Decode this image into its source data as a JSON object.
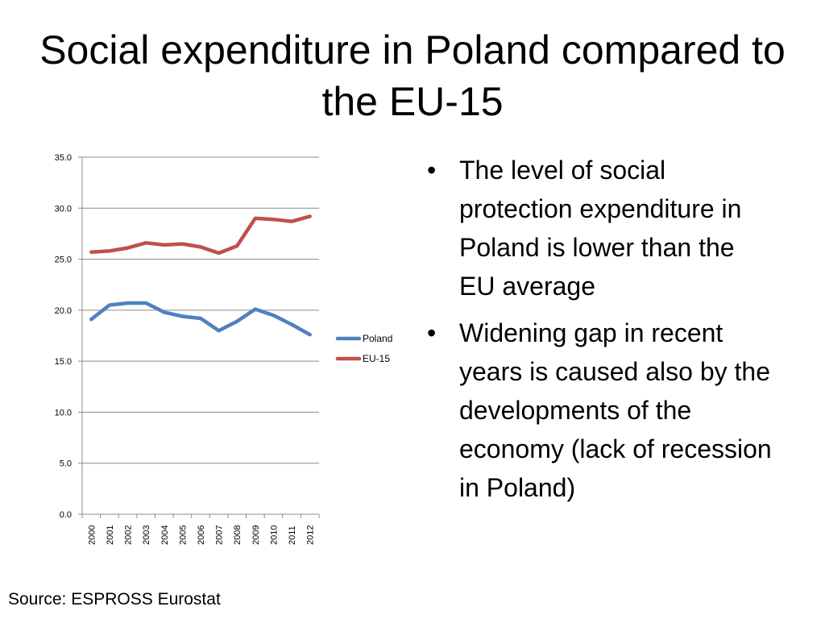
{
  "slide": {
    "title": "Social expenditure in Poland compared to the EU-15",
    "bullets": [
      "The level of social protection expenditure in Poland is lower than the EU average",
      "Widening gap in recent years is caused also by the developments of the economy (lack of recession in Poland)"
    ],
    "bullet_symbol": "•",
    "source": "Source: ESPROSS Eurostat"
  },
  "chart_data": {
    "type": "line",
    "title": "",
    "xlabel": "",
    "ylabel": "",
    "x": [
      "2000",
      "2001",
      "2002",
      "2003",
      "2004",
      "2005",
      "2006",
      "2007",
      "2008",
      "2009",
      "2010",
      "2011",
      "2012"
    ],
    "ylim": [
      0,
      35
    ],
    "yticks": [
      "0.0",
      "5.0",
      "10.0",
      "15.0",
      "20.0",
      "25.0",
      "30.0",
      "35.0"
    ],
    "grid": true,
    "legend": "right",
    "series": [
      {
        "name": "Poland",
        "color": "#4F81BD",
        "values": [
          19.1,
          20.5,
          20.7,
          20.7,
          19.8,
          19.4,
          19.2,
          18.0,
          18.9,
          20.1,
          19.5,
          18.6,
          17.6
        ]
      },
      {
        "name": "EU-15",
        "color": "#C0504D",
        "values": [
          25.7,
          25.8,
          26.1,
          26.6,
          26.4,
          26.5,
          26.2,
          25.6,
          26.3,
          29.0,
          28.9,
          28.7,
          29.2
        ]
      }
    ]
  }
}
